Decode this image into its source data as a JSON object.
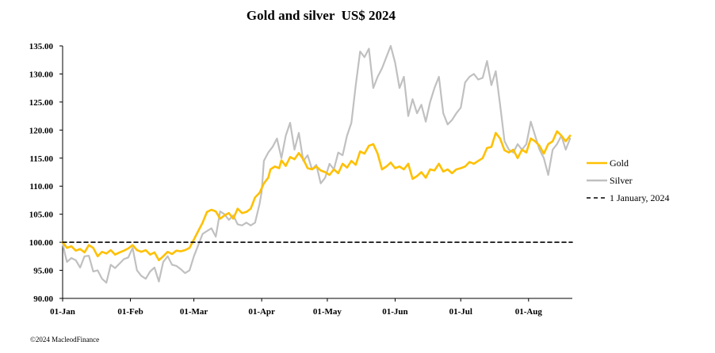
{
  "chart_data": {
    "type": "line",
    "title": "Gold and silver  US$ 2024",
    "xlabel": "",
    "ylabel": "",
    "ylim": [
      90,
      135
    ],
    "y_ticks": [
      "90.00",
      "95.00",
      "100.00",
      "105.00",
      "110.00",
      "115.00",
      "120.00",
      "125.00",
      "130.00",
      "135.00"
    ],
    "x_ticks": [
      "01-Jan",
      "01-Feb",
      "01-Mar",
      "01-Apr",
      "01-May",
      "01-Jun",
      "01-Jul",
      "01-Aug"
    ],
    "x_range_days": [
      0,
      233
    ],
    "x_tick_days": [
      0,
      31,
      60,
      91,
      121,
      152,
      182,
      213
    ],
    "legend_position": "right",
    "series": [
      {
        "name": "Gold",
        "color": "#FFC000",
        "points": [
          [
            0,
            100.0
          ],
          [
            2,
            99.0
          ],
          [
            4,
            99.3
          ],
          [
            6,
            98.5
          ],
          [
            8,
            98.8
          ],
          [
            10,
            98.2
          ],
          [
            12,
            99.5
          ],
          [
            14,
            99.0
          ],
          [
            16,
            97.5
          ],
          [
            18,
            98.3
          ],
          [
            20,
            98.0
          ],
          [
            22,
            98.6
          ],
          [
            24,
            97.8
          ],
          [
            26,
            98.2
          ],
          [
            28,
            98.5
          ],
          [
            30,
            98.9
          ],
          [
            32,
            99.5
          ],
          [
            34,
            98.6
          ],
          [
            36,
            98.3
          ],
          [
            38,
            98.6
          ],
          [
            40,
            97.8
          ],
          [
            42,
            98.2
          ],
          [
            44,
            96.8
          ],
          [
            46,
            97.5
          ],
          [
            48,
            98.3
          ],
          [
            50,
            97.9
          ],
          [
            52,
            98.5
          ],
          [
            54,
            98.4
          ],
          [
            56,
            98.6
          ],
          [
            58,
            99.0
          ],
          [
            60,
            100.5
          ],
          [
            62,
            102.0
          ],
          [
            64,
            103.5
          ],
          [
            66,
            105.4
          ],
          [
            68,
            105.8
          ],
          [
            70,
            105.5
          ],
          [
            72,
            104.2
          ],
          [
            74,
            104.8
          ],
          [
            76,
            105.2
          ],
          [
            78,
            104.2
          ],
          [
            80,
            106.0
          ],
          [
            82,
            105.2
          ],
          [
            84,
            105.4
          ],
          [
            86,
            106.0
          ],
          [
            88,
            108.0
          ],
          [
            90,
            108.8
          ],
          [
            92,
            110.5
          ],
          [
            94,
            111.5
          ],
          [
            95,
            113.0
          ],
          [
            97,
            113.5
          ],
          [
            99,
            113.2
          ],
          [
            100,
            114.6
          ],
          [
            102,
            113.6
          ],
          [
            104,
            115.2
          ],
          [
            106,
            114.8
          ],
          [
            108,
            115.9
          ],
          [
            110,
            114.8
          ],
          [
            112,
            113.2
          ],
          [
            114,
            113.0
          ],
          [
            116,
            113.5
          ],
          [
            118,
            112.8
          ],
          [
            120,
            112.5
          ],
          [
            122,
            112.0
          ],
          [
            124,
            113.0
          ],
          [
            126,
            112.3
          ],
          [
            128,
            114.0
          ],
          [
            130,
            113.3
          ],
          [
            132,
            114.5
          ],
          [
            134,
            113.8
          ],
          [
            136,
            116.2
          ],
          [
            138,
            115.8
          ],
          [
            140,
            117.2
          ],
          [
            142,
            117.5
          ],
          [
            144,
            115.8
          ],
          [
            146,
            113.0
          ],
          [
            148,
            113.5
          ],
          [
            150,
            114.2
          ],
          [
            152,
            113.2
          ],
          [
            154,
            113.5
          ],
          [
            156,
            113.0
          ],
          [
            158,
            114.0
          ],
          [
            160,
            111.3
          ],
          [
            162,
            111.8
          ],
          [
            164,
            112.5
          ],
          [
            166,
            111.5
          ],
          [
            168,
            113.0
          ],
          [
            170,
            112.8
          ],
          [
            172,
            114.0
          ],
          [
            174,
            112.6
          ],
          [
            176,
            113.0
          ],
          [
            178,
            112.3
          ],
          [
            180,
            113.0
          ],
          [
            182,
            113.2
          ],
          [
            184,
            113.5
          ],
          [
            186,
            114.3
          ],
          [
            188,
            114.0
          ],
          [
            190,
            114.5
          ],
          [
            192,
            115.0
          ],
          [
            194,
            116.8
          ],
          [
            196,
            117.0
          ],
          [
            198,
            119.5
          ],
          [
            200,
            118.5
          ],
          [
            202,
            116.4
          ],
          [
            204,
            116.0
          ],
          [
            206,
            116.5
          ],
          [
            208,
            115.0
          ],
          [
            210,
            116.5
          ],
          [
            212,
            116.0
          ],
          [
            214,
            118.5
          ],
          [
            216,
            118.0
          ],
          [
            218,
            117.2
          ],
          [
            220,
            115.8
          ],
          [
            222,
            117.5
          ],
          [
            224,
            118.0
          ],
          [
            226,
            119.8
          ],
          [
            228,
            119.0
          ],
          [
            230,
            118.0
          ],
          [
            232,
            119.0
          ]
        ]
      },
      {
        "name": "Silver",
        "color": "#C0C0C0",
        "points": [
          [
            0,
            100.0
          ],
          [
            1,
            98.0
          ],
          [
            2,
            96.5
          ],
          [
            4,
            97.2
          ],
          [
            6,
            96.8
          ],
          [
            8,
            95.5
          ],
          [
            10,
            97.5
          ],
          [
            12,
            97.6
          ],
          [
            14,
            94.8
          ],
          [
            16,
            95.0
          ],
          [
            18,
            93.5
          ],
          [
            20,
            92.8
          ],
          [
            22,
            96.0
          ],
          [
            24,
            95.4
          ],
          [
            26,
            96.2
          ],
          [
            28,
            97.0
          ],
          [
            30,
            97.3
          ],
          [
            32,
            99.0
          ],
          [
            34,
            95.0
          ],
          [
            36,
            94.0
          ],
          [
            38,
            93.5
          ],
          [
            40,
            94.8
          ],
          [
            42,
            95.5
          ],
          [
            44,
            93.0
          ],
          [
            46,
            96.5
          ],
          [
            48,
            97.5
          ],
          [
            50,
            96.0
          ],
          [
            52,
            95.8
          ],
          [
            54,
            95.2
          ],
          [
            56,
            94.5
          ],
          [
            58,
            95.0
          ],
          [
            60,
            97.5
          ],
          [
            62,
            99.5
          ],
          [
            64,
            101.5
          ],
          [
            66,
            102.0
          ],
          [
            68,
            102.5
          ],
          [
            70,
            101.0
          ],
          [
            72,
            105.5
          ],
          [
            74,
            105.0
          ],
          [
            76,
            104.0
          ],
          [
            78,
            104.8
          ],
          [
            80,
            103.2
          ],
          [
            82,
            103.0
          ],
          [
            84,
            103.5
          ],
          [
            86,
            103.0
          ],
          [
            88,
            103.5
          ],
          [
            90,
            106.8
          ],
          [
            91,
            109.0
          ],
          [
            92,
            114.5
          ],
          [
            94,
            116.0
          ],
          [
            96,
            117.0
          ],
          [
            98,
            118.5
          ],
          [
            100,
            115.0
          ],
          [
            102,
            119.0
          ],
          [
            104,
            121.3
          ],
          [
            106,
            116.5
          ],
          [
            108,
            119.5
          ],
          [
            110,
            114.5
          ],
          [
            112,
            115.5
          ],
          [
            114,
            113.0
          ],
          [
            116,
            113.8
          ],
          [
            118,
            110.5
          ],
          [
            120,
            111.5
          ],
          [
            122,
            114.0
          ],
          [
            124,
            113.0
          ],
          [
            126,
            116.0
          ],
          [
            128,
            115.5
          ],
          [
            130,
            119.0
          ],
          [
            132,
            121.3
          ],
          [
            134,
            128.0
          ],
          [
            136,
            134.0
          ],
          [
            138,
            133.0
          ],
          [
            140,
            134.5
          ],
          [
            142,
            127.5
          ],
          [
            144,
            129.5
          ],
          [
            146,
            131.0
          ],
          [
            148,
            133.0
          ],
          [
            150,
            135.0
          ],
          [
            152,
            132.0
          ],
          [
            154,
            127.5
          ],
          [
            156,
            129.5
          ],
          [
            158,
            122.5
          ],
          [
            160,
            125.5
          ],
          [
            162,
            123.0
          ],
          [
            164,
            124.5
          ],
          [
            166,
            121.5
          ],
          [
            168,
            125.0
          ],
          [
            170,
            127.5
          ],
          [
            172,
            129.5
          ],
          [
            174,
            123.0
          ],
          [
            176,
            121.0
          ],
          [
            178,
            121.8
          ],
          [
            180,
            123.0
          ],
          [
            182,
            124.0
          ],
          [
            184,
            128.5
          ],
          [
            186,
            129.5
          ],
          [
            188,
            130.0
          ],
          [
            190,
            129.0
          ],
          [
            192,
            129.3
          ],
          [
            194,
            132.3
          ],
          [
            196,
            128.0
          ],
          [
            198,
            130.5
          ],
          [
            200,
            124.5
          ],
          [
            202,
            118.0
          ],
          [
            204,
            116.5
          ],
          [
            206,
            116.0
          ],
          [
            208,
            117.5
          ],
          [
            210,
            116.5
          ],
          [
            212,
            117.5
          ],
          [
            214,
            121.5
          ],
          [
            216,
            119.0
          ],
          [
            218,
            116.5
          ],
          [
            220,
            115.0
          ],
          [
            222,
            112.0
          ],
          [
            224,
            116.5
          ],
          [
            226,
            117.5
          ],
          [
            228,
            119.0
          ],
          [
            230,
            116.5
          ],
          [
            232,
            118.5
          ]
        ]
      },
      {
        "name": "1 January, 2024",
        "color": "#000000",
        "dashed": true,
        "points": [
          [
            0,
            100.0
          ],
          [
            233,
            100.0
          ]
        ]
      }
    ]
  },
  "footer": {
    "copyright": "©2024 MacleodFinance"
  }
}
